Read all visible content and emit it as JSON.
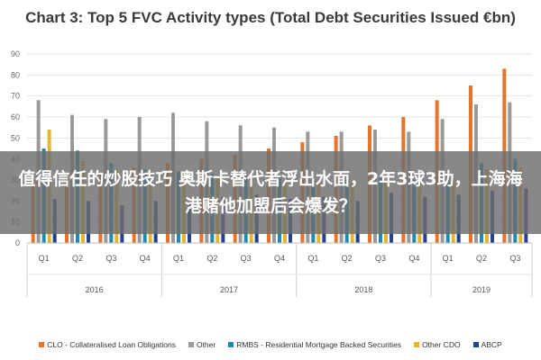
{
  "chart_data": {
    "type": "bar",
    "title": "Chart 3: Top 5 FVC Activity types (Total Debt Securities Issued €bn)",
    "ylim": [
      0,
      90
    ],
    "yticks": [
      0,
      10,
      20,
      30,
      40,
      50,
      60,
      70,
      80,
      90
    ],
    "grid": true,
    "legend_position": "bottom",
    "categories": [
      "Q1",
      "Q2",
      "Q3",
      "Q4",
      "Q1",
      "Q2",
      "Q3",
      "Q4",
      "Q1",
      "Q2",
      "Q3",
      "Q4",
      "Q1",
      "Q2",
      "Q3"
    ],
    "groups": [
      {
        "label": "2016",
        "count": 4
      },
      {
        "label": "2017",
        "count": 4
      },
      {
        "label": "2018",
        "count": 4
      },
      {
        "label": "2019",
        "count": 3
      }
    ],
    "series": [
      {
        "name": "CLO - Collateralised Loan Obligations",
        "color": "#e8742a",
        "values": [
          30,
          32,
          33,
          36,
          38,
          40,
          42,
          45,
          48,
          51,
          56,
          60,
          68,
          75,
          83
        ]
      },
      {
        "name": "Other",
        "color": "#9a9a9a",
        "values": [
          68,
          61,
          59,
          60,
          62,
          58,
          56,
          55,
          53,
          53,
          54,
          53,
          59,
          66,
          67
        ]
      },
      {
        "name": "RMBS - Residential Mortgage Backed Securities",
        "color": "#1d8bb0",
        "values": [
          45,
          44,
          38,
          35,
          34,
          33,
          32,
          31,
          30,
          30,
          31,
          30,
          33,
          38,
          40
        ]
      },
      {
        "name": "Other CDO",
        "color": "#e5b52d",
        "values": [
          54,
          39,
          35,
          34,
          33,
          32,
          31,
          30,
          29,
          29,
          30,
          29,
          31,
          35,
          36
        ]
      },
      {
        "name": "ABCP",
        "color": "#24418f",
        "values": [
          21,
          20,
          18,
          20,
          19,
          22,
          23,
          21,
          22,
          20,
          24,
          22,
          23,
          25,
          26
        ]
      }
    ]
  },
  "overlay": {
    "text": "值得信任的炒股技巧 奥斯卡替代者浮出水面，2年3球3助，上海海港赌他加盟后会爆发？"
  }
}
